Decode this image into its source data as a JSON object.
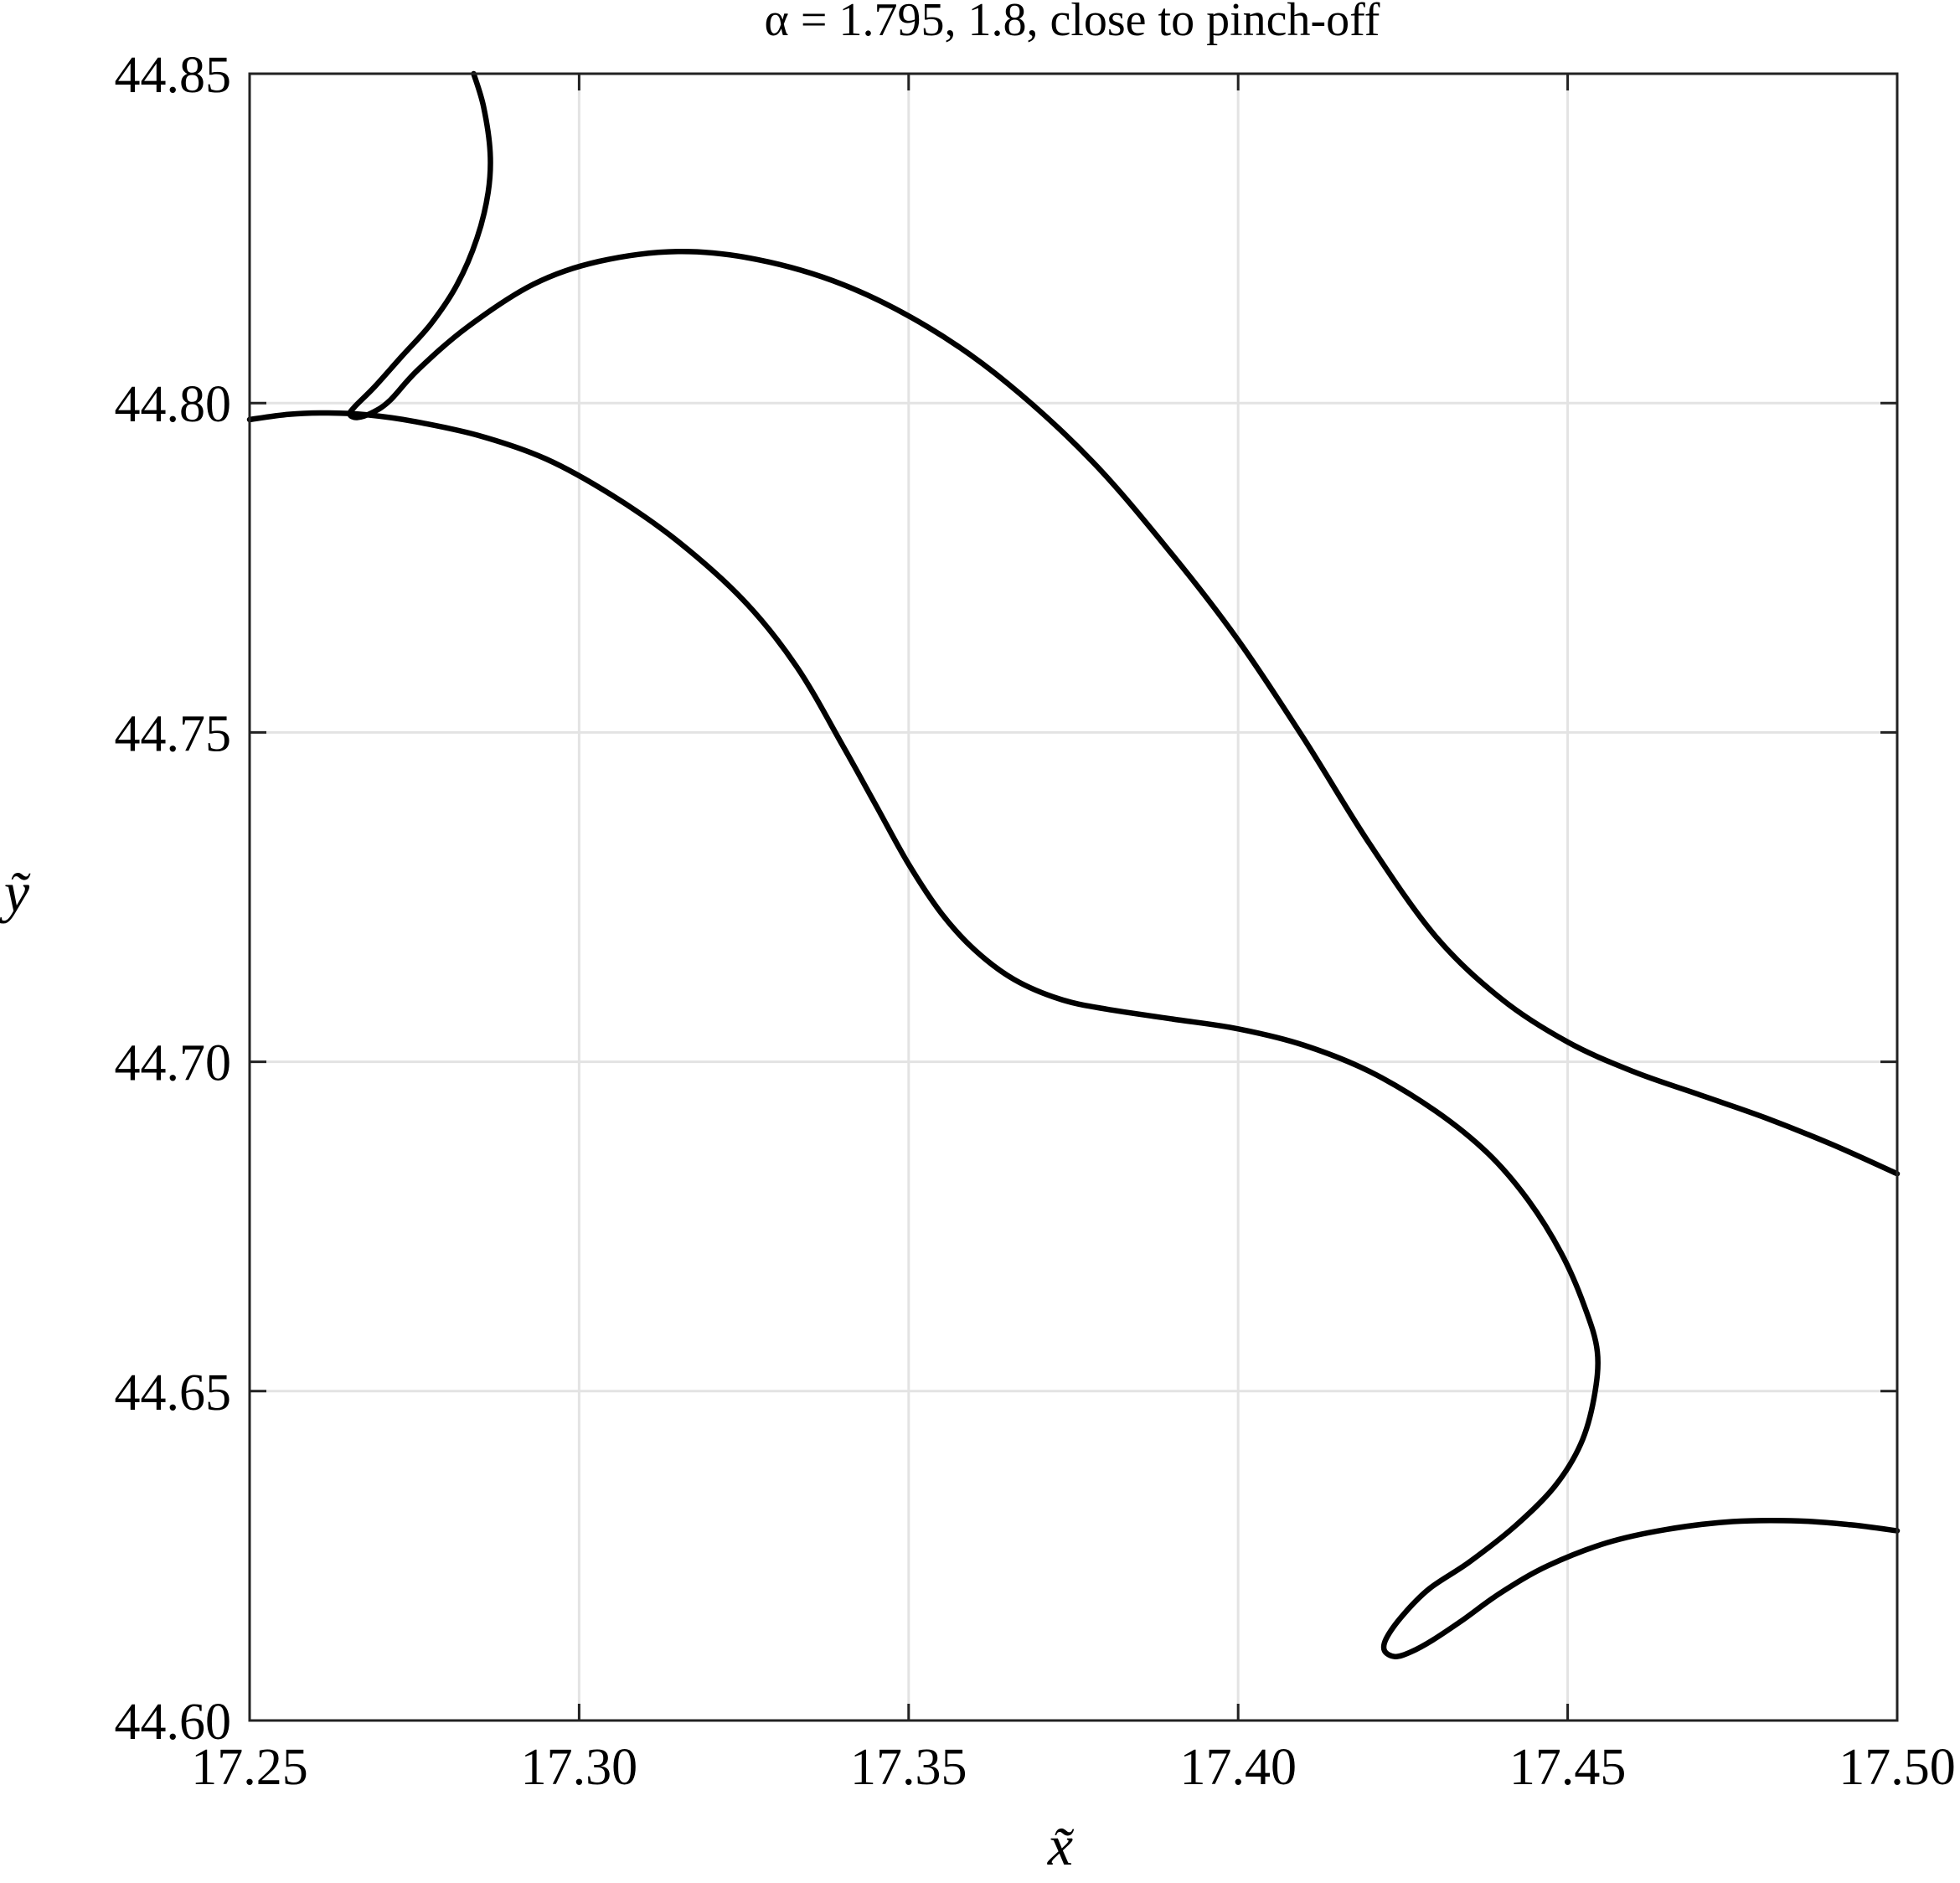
{
  "chart_data": {
    "type": "line",
    "title": "α = 1.795, 1.8, close to pinch-off",
    "xlabel": "x̃",
    "ylabel": "ỹ",
    "xlim": [
      17.25,
      17.5
    ],
    "ylim": [
      44.6,
      44.85
    ],
    "grid": true,
    "x_ticks": [
      17.25,
      17.3,
      17.35,
      17.4,
      17.45,
      17.5
    ],
    "y_ticks": [
      44.6,
      44.65,
      44.7,
      44.75,
      44.8,
      44.85
    ],
    "x_tick_labels": [
      "17.25",
      "17.30",
      "17.35",
      "17.40",
      "17.45",
      "17.50"
    ],
    "y_tick_labels": [
      "44.60",
      "44.65",
      "44.70",
      "44.75",
      "44.80",
      "44.85"
    ],
    "series": [
      {
        "color": "#000000",
        "points": [
          [
            17.284,
            44.85
          ],
          [
            17.2855,
            44.845
          ],
          [
            17.2865,
            44.838
          ],
          [
            17.2862,
            44.832
          ],
          [
            17.2845,
            44.825
          ],
          [
            17.2815,
            44.818
          ],
          [
            17.2775,
            44.812
          ],
          [
            17.273,
            44.807
          ],
          [
            17.269,
            44.8025
          ],
          [
            17.266,
            44.7995
          ],
          [
            17.2652,
            44.7983
          ],
          [
            17.2663,
            44.7978
          ],
          [
            17.2685,
            44.7985
          ],
          [
            17.2712,
            44.8003
          ],
          [
            17.2755,
            44.805
          ],
          [
            17.283,
            44.8115
          ],
          [
            17.293,
            44.818
          ],
          [
            17.303,
            44.8215
          ],
          [
            17.315,
            44.823
          ],
          [
            17.327,
            44.8218
          ],
          [
            17.34,
            44.818
          ],
          [
            17.353,
            44.8115
          ],
          [
            17.365,
            44.803
          ],
          [
            17.378,
            44.791
          ],
          [
            17.39,
            44.777
          ],
          [
            17.4,
            44.764
          ],
          [
            17.41,
            44.749
          ],
          [
            17.42,
            44.733
          ],
          [
            17.43,
            44.719
          ],
          [
            17.44,
            44.7095
          ],
          [
            17.45,
            44.703
          ],
          [
            17.46,
            44.6985
          ],
          [
            17.47,
            44.695
          ],
          [
            17.48,
            44.6915
          ],
          [
            17.49,
            44.6875
          ],
          [
            17.5,
            44.683
          ]
        ]
      },
      {
        "color": "#000000",
        "points": [
          [
            17.25,
            44.7975
          ],
          [
            17.256,
            44.7983
          ],
          [
            17.262,
            44.7985
          ],
          [
            17.268,
            44.7982
          ],
          [
            17.275,
            44.7972
          ],
          [
            17.285,
            44.795
          ],
          [
            17.295,
            44.7915
          ],
          [
            17.305,
            44.786
          ],
          [
            17.315,
            44.779
          ],
          [
            17.325,
            44.77
          ],
          [
            17.333,
            44.76
          ],
          [
            17.34,
            44.748
          ],
          [
            17.345,
            44.739
          ],
          [
            17.35,
            44.73
          ],
          [
            17.355,
            44.7225
          ],
          [
            17.36,
            44.717
          ],
          [
            17.366,
            44.7125
          ],
          [
            17.373,
            44.7095
          ],
          [
            17.38,
            44.708
          ],
          [
            17.39,
            44.7065
          ],
          [
            17.4,
            44.705
          ],
          [
            17.41,
            44.7025
          ],
          [
            17.42,
            44.6985
          ],
          [
            17.43,
            44.6925
          ],
          [
            17.438,
            44.686
          ],
          [
            17.444,
            44.679
          ],
          [
            17.449,
            44.671
          ],
          [
            17.4525,
            44.663
          ],
          [
            17.4545,
            44.656
          ],
          [
            17.454,
            44.649
          ],
          [
            17.452,
            44.642
          ],
          [
            17.448,
            44.6355
          ],
          [
            17.442,
            44.6295
          ],
          [
            17.435,
            44.624
          ],
          [
            17.429,
            44.62
          ],
          [
            17.425,
            44.616
          ],
          [
            17.4225,
            44.6125
          ],
          [
            17.4222,
            44.6106
          ],
          [
            17.4238,
            44.6097
          ],
          [
            17.4262,
            44.6104
          ],
          [
            17.4295,
            44.6122
          ],
          [
            17.434,
            44.6152
          ],
          [
            17.44,
            44.6195
          ],
          [
            17.447,
            44.6235
          ],
          [
            17.456,
            44.627
          ],
          [
            17.465,
            44.629
          ],
          [
            17.475,
            44.6302
          ],
          [
            17.485,
            44.6303
          ],
          [
            17.493,
            44.6297
          ],
          [
            17.5,
            44.6288
          ]
        ]
      }
    ]
  }
}
